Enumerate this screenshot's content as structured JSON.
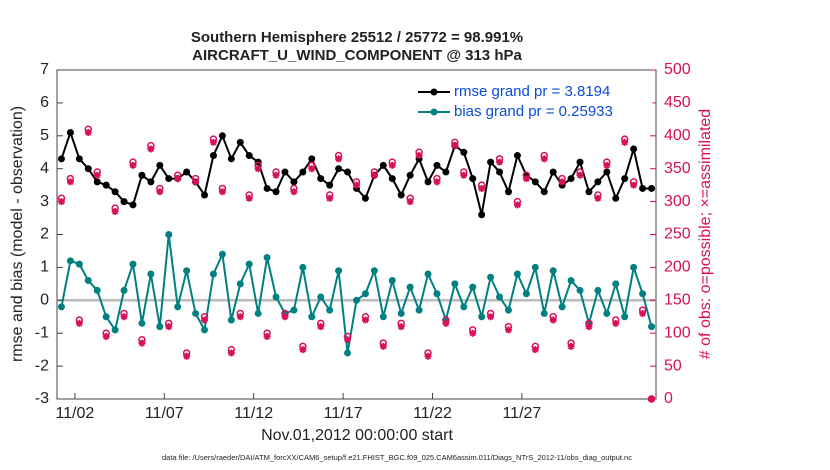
{
  "chart_data": {
    "type": "line",
    "title": "Southern Hemisphere 25512 / 25772 = 98.991%",
    "subtitle": "AIRCRAFT_U_WIND_COMPONENT @ 313 hPa",
    "y_label": "rmse and bias (model - observation)",
    "y2_label": "# of obs: o=possible; ×=assimilated",
    "x_label": "Nov.01,2012 00:00:00 start",
    "footer": "data file: /Users/raeder/DAI/ATM_forcXX/CAM6_setup/f.e21.FHIST_BGC.f09_025.CAM6assim.011/Diags_NTrS_2012-11/obs_diag_output.nc",
    "xlim": [
      1,
      34.5
    ],
    "xticks": [
      {
        "value": 2,
        "label": "11/02"
      },
      {
        "value": 7,
        "label": "11/07"
      },
      {
        "value": 12,
        "label": "11/12"
      },
      {
        "value": 17,
        "label": "11/17"
      },
      {
        "value": 22,
        "label": "11/22"
      },
      {
        "value": 27,
        "label": "11/27"
      }
    ],
    "ylim": [
      -3,
      7
    ],
    "yticks": [
      -3,
      -2,
      -1,
      0,
      1,
      2,
      3,
      4,
      5,
      6,
      7
    ],
    "y2lim": [
      0,
      500
    ],
    "y2ticks": [
      0,
      50,
      100,
      150,
      200,
      250,
      300,
      350,
      400,
      450,
      500
    ],
    "legend": "upper right",
    "x": [
      1.25,
      1.75,
      2.25,
      2.75,
      3.25,
      3.75,
      4.25,
      4.75,
      5.25,
      5.75,
      6.25,
      6.75,
      7.25,
      7.75,
      8.25,
      8.75,
      9.25,
      9.75,
      10.25,
      10.75,
      11.25,
      11.75,
      12.25,
      12.75,
      13.25,
      13.75,
      14.25,
      14.75,
      15.25,
      15.75,
      16.25,
      16.75,
      17.25,
      17.75,
      18.25,
      18.75,
      19.25,
      19.75,
      20.25,
      20.75,
      21.25,
      21.75,
      22.25,
      22.75,
      23.25,
      23.75,
      24.25,
      24.75,
      25.25,
      25.75,
      26.25,
      26.75,
      27.25,
      27.75,
      28.25,
      28.75,
      29.25,
      29.75,
      30.25,
      30.75,
      31.25,
      31.75,
      32.25,
      32.75,
      33.25,
      33.75,
      34.25
    ],
    "series": [
      {
        "name": "rmse grand pr = 3.8194",
        "color": "#000000",
        "marker": "dot",
        "values": [
          4.3,
          5.1,
          4.3,
          4.0,
          3.6,
          3.5,
          3.3,
          3.0,
          2.9,
          3.8,
          3.6,
          4.1,
          3.7,
          3.7,
          3.9,
          3.6,
          3.2,
          4.4,
          5.0,
          4.3,
          4.8,
          4.4,
          4.2,
          3.4,
          3.3,
          3.9,
          3.6,
          3.9,
          4.3,
          3.7,
          3.5,
          4.0,
          3.9,
          3.4,
          3.1,
          3.8,
          4.1,
          3.7,
          3.2,
          3.8,
          4.3,
          3.6,
          4.1,
          3.9,
          4.7,
          4.5,
          3.7,
          2.6,
          4.2,
          3.9,
          3.3,
          4.4,
          3.8,
          3.6,
          3.3,
          3.9,
          3.5,
          3.7,
          4.2,
          3.3,
          3.6,
          3.9,
          3.1,
          3.7,
          4.6,
          3.4,
          3.4
        ]
      },
      {
        "name": "bias grand pr = 0.25933",
        "color": "#008080",
        "marker": "dot",
        "values": [
          -0.2,
          1.2,
          1.1,
          0.6,
          0.3,
          -0.5,
          -0.9,
          0.3,
          1.1,
          -0.7,
          0.8,
          -0.8,
          2.0,
          -0.2,
          0.9,
          -0.4,
          -0.9,
          0.8,
          1.4,
          -0.6,
          0.5,
          1.1,
          -0.4,
          1.3,
          0.1,
          -0.4,
          -0.3,
          1.0,
          -0.5,
          0.1,
          -0.3,
          0.9,
          -1.6,
          0.0,
          0.2,
          0.9,
          -0.5,
          0.6,
          -0.4,
          0.4,
          -0.3,
          0.8,
          0.2,
          -0.6,
          0.5,
          -0.2,
          0.4,
          -0.5,
          0.7,
          0.1,
          -0.3,
          0.8,
          0.2,
          1.0,
          -0.4,
          0.9,
          -0.2,
          0.6,
          0.3,
          -0.7,
          0.3,
          -0.4,
          0.5,
          -0.5,
          1.0,
          0.2,
          -0.8
        ]
      },
      {
        "color": "#d6105a",
        "axis": "y2",
        "marker": "circle",
        "values": [
          305,
          335,
          120,
          410,
          345,
          100,
          290,
          130,
          360,
          90,
          385,
          320,
          115,
          340,
          70,
          335,
          125,
          395,
          320,
          75,
          130,
          310,
          355,
          100,
          345,
          130,
          320,
          80,
          355,
          115,
          310,
          370,
          95,
          330,
          125,
          345,
          85,
          360,
          115,
          305,
          375,
          70,
          335,
          120,
          390,
          345,
          105,
          325,
          130,
          365,
          110,
          300,
          340,
          80,
          370,
          125,
          335,
          85,
          345,
          115,
          310,
          360,
          120,
          395,
          330,
          135,
          0
        ]
      },
      {
        "color": "#d6105a",
        "axis": "y2",
        "marker": "star",
        "values": [
          300,
          330,
          115,
          405,
          340,
          95,
          285,
          125,
          355,
          85,
          380,
          315,
          110,
          335,
          65,
          330,
          120,
          390,
          315,
          70,
          125,
          305,
          350,
          95,
          340,
          125,
          315,
          75,
          350,
          110,
          305,
          365,
          90,
          325,
          120,
          340,
          80,
          355,
          110,
          300,
          370,
          65,
          330,
          115,
          385,
          340,
          100,
          320,
          125,
          360,
          105,
          295,
          335,
          75,
          365,
          120,
          330,
          80,
          340,
          110,
          305,
          355,
          115,
          390,
          325,
          130,
          0
        ]
      }
    ]
  }
}
